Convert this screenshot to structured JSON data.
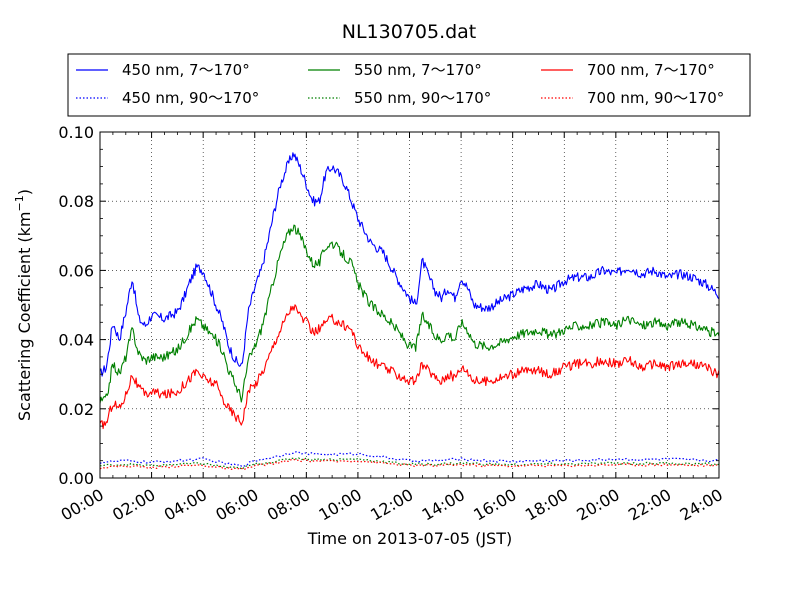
{
  "chart_data": {
    "type": "line",
    "title": "NL130705.dat",
    "xlabel": "Time on 2013-07-05 (JST)",
    "ylabel": "Scattering Coefficient (km",
    "ylabel_sup": "−1",
    "ylabel_close": ")",
    "xlim": [
      "00:00",
      "24:00"
    ],
    "ylim": [
      0.0,
      0.1
    ],
    "grid": true,
    "legend_position": "top",
    "x_ticks": [
      "00:00",
      "02:00",
      "04:00",
      "06:00",
      "08:00",
      "10:00",
      "12:00",
      "14:00",
      "16:00",
      "18:00",
      "20:00",
      "22:00",
      "24:00"
    ],
    "y_ticks": [
      "0.00",
      "0.02",
      "0.04",
      "0.06",
      "0.08",
      "0.10"
    ],
    "series": [
      {
        "name": "450 nm, 7～170°",
        "color": "#0000ff",
        "style": "solid",
        "x": [
          0.0,
          0.25,
          0.5,
          0.75,
          1.0,
          1.25,
          1.5,
          1.75,
          2.0,
          2.5,
          3.0,
          3.25,
          3.5,
          3.75,
          4.0,
          4.25,
          4.5,
          4.75,
          5.0,
          5.25,
          5.5,
          5.75,
          6.0,
          6.25,
          6.5,
          6.75,
          7.0,
          7.25,
          7.5,
          7.75,
          8.0,
          8.25,
          8.5,
          8.75,
          9.0,
          9.25,
          9.5,
          9.75,
          10.0,
          10.5,
          11.0,
          11.5,
          12.0,
          12.25,
          12.5,
          12.75,
          13.0,
          13.25,
          13.5,
          13.75,
          14.0,
          14.25,
          14.5,
          15.0,
          15.5,
          16.0,
          16.5,
          17.0,
          17.5,
          18.0,
          18.5,
          19.0,
          19.5,
          20.0,
          20.5,
          21.0,
          21.5,
          22.0,
          22.5,
          23.0,
          23.5,
          24.0
        ],
        "y": [
          0.03,
          0.032,
          0.045,
          0.04,
          0.048,
          0.058,
          0.046,
          0.044,
          0.047,
          0.046,
          0.048,
          0.052,
          0.057,
          0.061,
          0.06,
          0.055,
          0.05,
          0.045,
          0.038,
          0.034,
          0.032,
          0.048,
          0.055,
          0.06,
          0.068,
          0.077,
          0.085,
          0.09,
          0.094,
          0.09,
          0.085,
          0.08,
          0.08,
          0.088,
          0.09,
          0.088,
          0.085,
          0.08,
          0.075,
          0.068,
          0.065,
          0.058,
          0.052,
          0.05,
          0.063,
          0.058,
          0.054,
          0.052,
          0.055,
          0.052,
          0.058,
          0.055,
          0.05,
          0.049,
          0.051,
          0.053,
          0.055,
          0.056,
          0.054,
          0.057,
          0.058,
          0.058,
          0.06,
          0.059,
          0.061,
          0.059,
          0.06,
          0.058,
          0.059,
          0.058,
          0.056,
          0.053
        ]
      },
      {
        "name": "450 nm, 90～170°",
        "color": "#0000ff",
        "style": "dotted",
        "x": [
          0.0,
          1.0,
          2.0,
          3.0,
          4.0,
          5.0,
          5.5,
          6.0,
          7.0,
          7.5,
          8.0,
          9.0,
          10.0,
          11.0,
          12.0,
          13.0,
          14.0,
          15.0,
          16.0,
          17.0,
          18.0,
          19.0,
          20.0,
          21.0,
          22.0,
          23.0,
          24.0
        ],
        "y": [
          0.0045,
          0.005,
          0.0045,
          0.005,
          0.0055,
          0.004,
          0.0035,
          0.005,
          0.0065,
          0.0075,
          0.007,
          0.0068,
          0.007,
          0.006,
          0.005,
          0.005,
          0.0055,
          0.005,
          0.0048,
          0.005,
          0.005,
          0.0052,
          0.0055,
          0.0053,
          0.0055,
          0.0052,
          0.005
        ]
      },
      {
        "name": "550 nm, 7～170°",
        "color": "#008000",
        "style": "solid",
        "x": [
          0.0,
          0.25,
          0.5,
          0.75,
          1.0,
          1.25,
          1.5,
          1.75,
          2.0,
          2.5,
          3.0,
          3.25,
          3.5,
          3.75,
          4.0,
          4.25,
          4.5,
          4.75,
          5.0,
          5.25,
          5.5,
          5.75,
          6.0,
          6.25,
          6.5,
          6.75,
          7.0,
          7.25,
          7.5,
          7.75,
          8.0,
          8.25,
          8.5,
          8.75,
          9.0,
          9.25,
          9.5,
          9.75,
          10.0,
          10.5,
          11.0,
          11.5,
          12.0,
          12.25,
          12.5,
          12.75,
          13.0,
          13.25,
          13.5,
          13.75,
          14.0,
          14.25,
          14.5,
          15.0,
          15.5,
          16.0,
          16.5,
          17.0,
          17.5,
          18.0,
          18.5,
          19.0,
          19.5,
          20.0,
          20.5,
          21.0,
          21.5,
          22.0,
          22.5,
          23.0,
          23.5,
          24.0
        ],
        "y": [
          0.022,
          0.023,
          0.033,
          0.03,
          0.035,
          0.043,
          0.036,
          0.034,
          0.035,
          0.035,
          0.037,
          0.04,
          0.043,
          0.046,
          0.044,
          0.042,
          0.04,
          0.037,
          0.031,
          0.027,
          0.023,
          0.034,
          0.038,
          0.043,
          0.05,
          0.058,
          0.065,
          0.07,
          0.073,
          0.07,
          0.066,
          0.062,
          0.062,
          0.067,
          0.068,
          0.066,
          0.064,
          0.062,
          0.056,
          0.05,
          0.047,
          0.043,
          0.038,
          0.038,
          0.047,
          0.044,
          0.041,
          0.04,
          0.042,
          0.04,
          0.045,
          0.043,
          0.039,
          0.038,
          0.039,
          0.041,
          0.042,
          0.043,
          0.041,
          0.043,
          0.044,
          0.044,
          0.045,
          0.044,
          0.046,
          0.044,
          0.045,
          0.044,
          0.045,
          0.044,
          0.043,
          0.041
        ]
      },
      {
        "name": "550 nm, 90～170°",
        "color": "#008000",
        "style": "dotted",
        "x": [
          0.0,
          1.0,
          2.0,
          3.0,
          4.0,
          5.0,
          5.5,
          6.0,
          7.0,
          7.5,
          8.0,
          9.0,
          10.0,
          11.0,
          12.0,
          13.0,
          14.0,
          15.0,
          16.0,
          17.0,
          18.0,
          19.0,
          20.0,
          21.0,
          22.0,
          23.0,
          24.0
        ],
        "y": [
          0.0035,
          0.004,
          0.0035,
          0.004,
          0.0042,
          0.003,
          0.0028,
          0.004,
          0.005,
          0.0058,
          0.0055,
          0.0053,
          0.0055,
          0.0047,
          0.004,
          0.004,
          0.0043,
          0.004,
          0.0038,
          0.004,
          0.004,
          0.0041,
          0.0043,
          0.0042,
          0.0043,
          0.0041,
          0.004
        ]
      },
      {
        "name": "700 nm, 7～170°",
        "color": "#ff0000",
        "style": "solid",
        "x": [
          0.0,
          0.25,
          0.5,
          0.75,
          1.0,
          1.25,
          1.5,
          1.75,
          2.0,
          2.5,
          3.0,
          3.25,
          3.5,
          3.75,
          4.0,
          4.25,
          4.5,
          4.75,
          5.0,
          5.25,
          5.5,
          5.75,
          6.0,
          6.25,
          6.5,
          6.75,
          7.0,
          7.25,
          7.5,
          7.75,
          8.0,
          8.25,
          8.5,
          8.75,
          9.0,
          9.25,
          9.5,
          9.75,
          10.0,
          10.5,
          11.0,
          11.5,
          12.0,
          12.25,
          12.5,
          12.75,
          13.0,
          13.25,
          13.5,
          13.75,
          14.0,
          14.25,
          14.5,
          15.0,
          15.5,
          16.0,
          16.5,
          17.0,
          17.5,
          18.0,
          18.5,
          19.0,
          19.5,
          20.0,
          20.5,
          21.0,
          21.5,
          22.0,
          22.5,
          23.0,
          23.5,
          24.0
        ],
        "y": [
          0.015,
          0.016,
          0.022,
          0.02,
          0.024,
          0.03,
          0.026,
          0.024,
          0.025,
          0.024,
          0.025,
          0.027,
          0.029,
          0.031,
          0.029,
          0.028,
          0.027,
          0.023,
          0.02,
          0.018,
          0.016,
          0.025,
          0.027,
          0.03,
          0.034,
          0.039,
          0.043,
          0.047,
          0.05,
          0.047,
          0.045,
          0.042,
          0.043,
          0.045,
          0.046,
          0.045,
          0.044,
          0.043,
          0.038,
          0.034,
          0.032,
          0.03,
          0.028,
          0.028,
          0.033,
          0.031,
          0.029,
          0.028,
          0.03,
          0.029,
          0.032,
          0.031,
          0.028,
          0.028,
          0.029,
          0.03,
          0.031,
          0.031,
          0.03,
          0.032,
          0.033,
          0.033,
          0.034,
          0.033,
          0.034,
          0.032,
          0.033,
          0.032,
          0.033,
          0.033,
          0.032,
          0.03
        ]
      },
      {
        "name": "700 nm, 90～170°",
        "color": "#ff0000",
        "style": "dotted",
        "x": [
          0.0,
          1.0,
          2.0,
          3.0,
          4.0,
          5.0,
          5.5,
          6.0,
          7.0,
          7.5,
          8.0,
          9.0,
          10.0,
          11.0,
          12.0,
          13.0,
          14.0,
          15.0,
          16.0,
          17.0,
          18.0,
          19.0,
          20.0,
          21.0,
          22.0,
          23.0,
          24.0
        ],
        "y": [
          0.003,
          0.0035,
          0.003,
          0.0035,
          0.0037,
          0.0026,
          0.0024,
          0.0035,
          0.0045,
          0.0052,
          0.005,
          0.0048,
          0.005,
          0.0043,
          0.0036,
          0.0036,
          0.0039,
          0.0036,
          0.0035,
          0.0036,
          0.0036,
          0.0037,
          0.0039,
          0.0038,
          0.0039,
          0.0037,
          0.0036
        ]
      }
    ]
  }
}
